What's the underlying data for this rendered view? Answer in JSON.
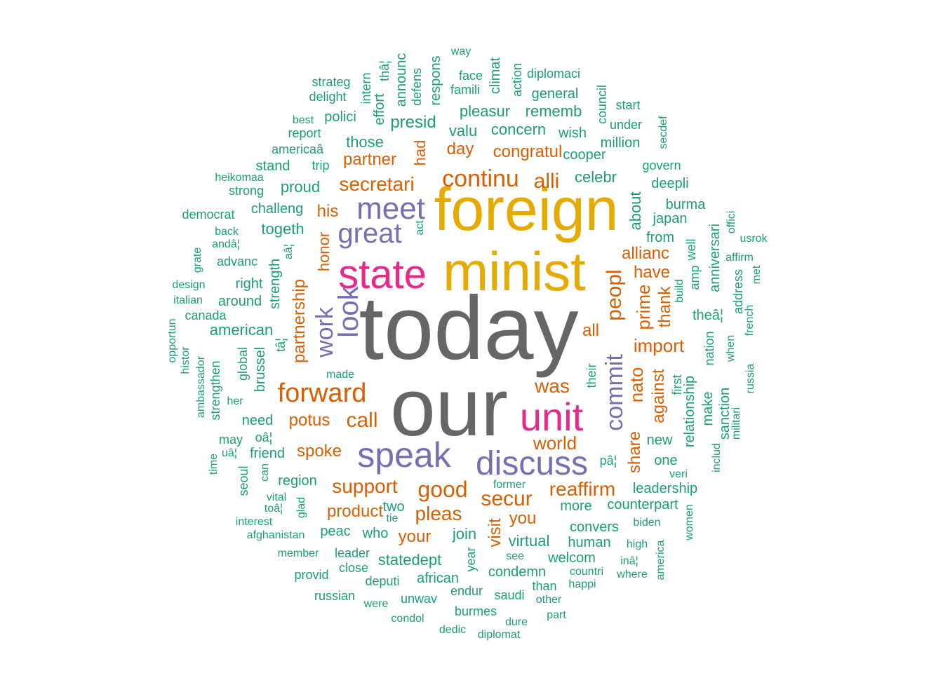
{
  "colors": {
    "gray": "#666666",
    "gold": "#E6AB02",
    "magenta": "#E7298A",
    "purple": "#7570B3",
    "orange": "#D95F02",
    "green": "#1B9E77"
  },
  "words": [
    {
      "text": "today",
      "color": "gray"
    },
    {
      "text": "our",
      "color": "gray"
    },
    {
      "text": "foreign",
      "color": "gold"
    },
    {
      "text": "minist",
      "color": "gold"
    },
    {
      "text": "state",
      "color": "magenta"
    },
    {
      "text": "unit",
      "color": "magenta"
    },
    {
      "text": "speak",
      "color": "purple"
    },
    {
      "text": "discuss",
      "color": "purple"
    },
    {
      "text": "meet",
      "color": "purple"
    },
    {
      "text": "great",
      "color": "purple"
    },
    {
      "text": "look",
      "color": "purple"
    },
    {
      "text": "work",
      "color": "purple"
    },
    {
      "text": "commit",
      "color": "purple"
    },
    {
      "text": "forward",
      "color": "orange"
    },
    {
      "text": "continu",
      "color": "orange"
    },
    {
      "text": "alli",
      "color": "orange"
    },
    {
      "text": "secretari",
      "color": "orange"
    },
    {
      "text": "partner",
      "color": "orange"
    },
    {
      "text": "congratul",
      "color": "orange"
    },
    {
      "text": "day",
      "color": "orange"
    },
    {
      "text": "had",
      "color": "orange"
    },
    {
      "text": "his",
      "color": "orange"
    },
    {
      "text": "honor",
      "color": "orange"
    },
    {
      "text": "partnership",
      "color": "orange"
    },
    {
      "text": "peopl",
      "color": "orange"
    },
    {
      "text": "allianc",
      "color": "orange"
    },
    {
      "text": "have",
      "color": "orange"
    },
    {
      "text": "prime",
      "color": "orange"
    },
    {
      "text": "thank",
      "color": "orange"
    },
    {
      "text": "import",
      "color": "orange"
    },
    {
      "text": "all",
      "color": "orange"
    },
    {
      "text": "was",
      "color": "orange"
    },
    {
      "text": "nato",
      "color": "orange"
    },
    {
      "text": "against",
      "color": "orange"
    },
    {
      "text": "share",
      "color": "orange"
    },
    {
      "text": "potus",
      "color": "orange"
    },
    {
      "text": "call",
      "color": "orange"
    },
    {
      "text": "world",
      "color": "orange"
    },
    {
      "text": "spoke",
      "color": "orange"
    },
    {
      "text": "support",
      "color": "orange"
    },
    {
      "text": "good",
      "color": "orange"
    },
    {
      "text": "reaffirm",
      "color": "orange"
    },
    {
      "text": "secur",
      "color": "orange"
    },
    {
      "text": "product",
      "color": "orange"
    },
    {
      "text": "pleas",
      "color": "orange"
    },
    {
      "text": "you",
      "color": "orange"
    },
    {
      "text": "visit",
      "color": "orange"
    },
    {
      "text": "your",
      "color": "orange"
    },
    {
      "text": "way",
      "color": "green"
    },
    {
      "text": "announc",
      "color": "green"
    },
    {
      "text": "thâ¦",
      "color": "green"
    },
    {
      "text": "intern",
      "color": "green"
    },
    {
      "text": "respons",
      "color": "green"
    },
    {
      "text": "defens",
      "color": "green"
    },
    {
      "text": "face",
      "color": "green"
    },
    {
      "text": "climat",
      "color": "green"
    },
    {
      "text": "action",
      "color": "green"
    },
    {
      "text": "diplomaci",
      "color": "green"
    },
    {
      "text": "strateg",
      "color": "green"
    },
    {
      "text": "delight",
      "color": "green"
    },
    {
      "text": "famili",
      "color": "green"
    },
    {
      "text": "general",
      "color": "green"
    },
    {
      "text": "effort",
      "color": "green"
    },
    {
      "text": "council",
      "color": "green"
    },
    {
      "text": "start",
      "color": "green"
    },
    {
      "text": "best",
      "color": "green"
    },
    {
      "text": "polici",
      "color": "green"
    },
    {
      "text": "pleasur",
      "color": "green"
    },
    {
      "text": "rememb",
      "color": "green"
    },
    {
      "text": "presid",
      "color": "green"
    },
    {
      "text": "report",
      "color": "green"
    },
    {
      "text": "valu",
      "color": "green"
    },
    {
      "text": "concern",
      "color": "green"
    },
    {
      "text": "wish",
      "color": "green"
    },
    {
      "text": "under",
      "color": "green"
    },
    {
      "text": "secdef",
      "color": "green"
    },
    {
      "text": "americaâ",
      "color": "green"
    },
    {
      "text": "those",
      "color": "green"
    },
    {
      "text": "million",
      "color": "green"
    },
    {
      "text": "cooper",
      "color": "green"
    },
    {
      "text": "stand",
      "color": "green"
    },
    {
      "text": "trip",
      "color": "green"
    },
    {
      "text": "govern",
      "color": "green"
    },
    {
      "text": "heikomaa",
      "color": "green"
    },
    {
      "text": "celebr",
      "color": "green"
    },
    {
      "text": "strong",
      "color": "green"
    },
    {
      "text": "proud",
      "color": "green"
    },
    {
      "text": "deepli",
      "color": "green"
    },
    {
      "text": "about",
      "color": "green"
    },
    {
      "text": "burma",
      "color": "green"
    },
    {
      "text": "democrat",
      "color": "green"
    },
    {
      "text": "challeng",
      "color": "green"
    },
    {
      "text": "offici",
      "color": "green"
    },
    {
      "text": "japan",
      "color": "green"
    },
    {
      "text": "back",
      "color": "green"
    },
    {
      "text": "togeth",
      "color": "green"
    },
    {
      "text": "act",
      "color": "green"
    },
    {
      "text": "from",
      "color": "green"
    },
    {
      "text": "usrok",
      "color": "green"
    },
    {
      "text": "andâ¦",
      "color": "green"
    },
    {
      "text": "grate",
      "color": "green"
    },
    {
      "text": "aâ¦",
      "color": "green"
    },
    {
      "text": "well",
      "color": "green"
    },
    {
      "text": "anniversari",
      "color": "green"
    },
    {
      "text": "advanc",
      "color": "green"
    },
    {
      "text": "affirm",
      "color": "green"
    },
    {
      "text": "amp",
      "color": "green"
    },
    {
      "text": "met",
      "color": "green"
    },
    {
      "text": "design",
      "color": "green"
    },
    {
      "text": "right",
      "color": "green"
    },
    {
      "text": "strength",
      "color": "green"
    },
    {
      "text": "build",
      "color": "green"
    },
    {
      "text": "address",
      "color": "green"
    },
    {
      "text": "italian",
      "color": "green"
    },
    {
      "text": "around",
      "color": "green"
    },
    {
      "text": "canada",
      "color": "green"
    },
    {
      "text": "theâ¦",
      "color": "green"
    },
    {
      "text": "french",
      "color": "green"
    },
    {
      "text": "opportun",
      "color": "green"
    },
    {
      "text": "american",
      "color": "green"
    },
    {
      "text": "histor",
      "color": "green"
    },
    {
      "text": "tâ¦",
      "color": "green"
    },
    {
      "text": "when",
      "color": "green"
    },
    {
      "text": "nation",
      "color": "green"
    },
    {
      "text": "ambassador",
      "color": "green"
    },
    {
      "text": "global",
      "color": "green"
    },
    {
      "text": "brussel",
      "color": "green"
    },
    {
      "text": "strengthen",
      "color": "green"
    },
    {
      "text": "made",
      "color": "green"
    },
    {
      "text": "their",
      "color": "green"
    },
    {
      "text": "first",
      "color": "green"
    },
    {
      "text": "relationship",
      "color": "green"
    },
    {
      "text": "russia",
      "color": "green"
    },
    {
      "text": "her",
      "color": "green"
    },
    {
      "text": "make",
      "color": "green"
    },
    {
      "text": "sanction",
      "color": "green"
    },
    {
      "text": "militari",
      "color": "green"
    },
    {
      "text": "need",
      "color": "green"
    },
    {
      "text": "may",
      "color": "green"
    },
    {
      "text": "oâ¦",
      "color": "green"
    },
    {
      "text": "new",
      "color": "green"
    },
    {
      "text": "includ",
      "color": "green"
    },
    {
      "text": "uâ¦",
      "color": "green"
    },
    {
      "text": "friend",
      "color": "green"
    },
    {
      "text": "time",
      "color": "green"
    },
    {
      "text": "seoul",
      "color": "green"
    },
    {
      "text": "can",
      "color": "green"
    },
    {
      "text": "pâ¦",
      "color": "green"
    },
    {
      "text": "one",
      "color": "green"
    },
    {
      "text": "veri",
      "color": "green"
    },
    {
      "text": "region",
      "color": "green"
    },
    {
      "text": "leadership",
      "color": "green"
    },
    {
      "text": "former",
      "color": "green"
    },
    {
      "text": "vital",
      "color": "green"
    },
    {
      "text": "toâ¦",
      "color": "green"
    },
    {
      "text": "two",
      "color": "green"
    },
    {
      "text": "more",
      "color": "green"
    },
    {
      "text": "counterpart",
      "color": "green"
    },
    {
      "text": "women",
      "color": "green"
    },
    {
      "text": "glad",
      "color": "green"
    },
    {
      "text": "tie",
      "color": "green"
    },
    {
      "text": "interest",
      "color": "green"
    },
    {
      "text": "biden",
      "color": "green"
    },
    {
      "text": "convers",
      "color": "green"
    },
    {
      "text": "afghanistan",
      "color": "green"
    },
    {
      "text": "peac",
      "color": "green"
    },
    {
      "text": "who",
      "color": "green"
    },
    {
      "text": "join",
      "color": "green"
    },
    {
      "text": "virtual",
      "color": "green"
    },
    {
      "text": "human",
      "color": "green"
    },
    {
      "text": "high",
      "color": "green"
    },
    {
      "text": "america",
      "color": "green"
    },
    {
      "text": "member",
      "color": "green"
    },
    {
      "text": "leader",
      "color": "green"
    },
    {
      "text": "year",
      "color": "green"
    },
    {
      "text": "see",
      "color": "green"
    },
    {
      "text": "welcom",
      "color": "green"
    },
    {
      "text": "inâ¦",
      "color": "green"
    },
    {
      "text": "statedept",
      "color": "green"
    },
    {
      "text": "close",
      "color": "green"
    },
    {
      "text": "condemn",
      "color": "green"
    },
    {
      "text": "countri",
      "color": "green"
    },
    {
      "text": "where",
      "color": "green"
    },
    {
      "text": "provid",
      "color": "green"
    },
    {
      "text": "deputi",
      "color": "green"
    },
    {
      "text": "african",
      "color": "green"
    },
    {
      "text": "than",
      "color": "green"
    },
    {
      "text": "happi",
      "color": "green"
    },
    {
      "text": "endur",
      "color": "green"
    },
    {
      "text": "saudi",
      "color": "green"
    },
    {
      "text": "russian",
      "color": "green"
    },
    {
      "text": "unwav",
      "color": "green"
    },
    {
      "text": "other",
      "color": "green"
    },
    {
      "text": "were",
      "color": "green"
    },
    {
      "text": "burmes",
      "color": "green"
    },
    {
      "text": "part",
      "color": "green"
    },
    {
      "text": "condol",
      "color": "green"
    },
    {
      "text": "dure",
      "color": "green"
    },
    {
      "text": "dedic",
      "color": "green"
    },
    {
      "text": "diplomat",
      "color": "green"
    }
  ]
}
